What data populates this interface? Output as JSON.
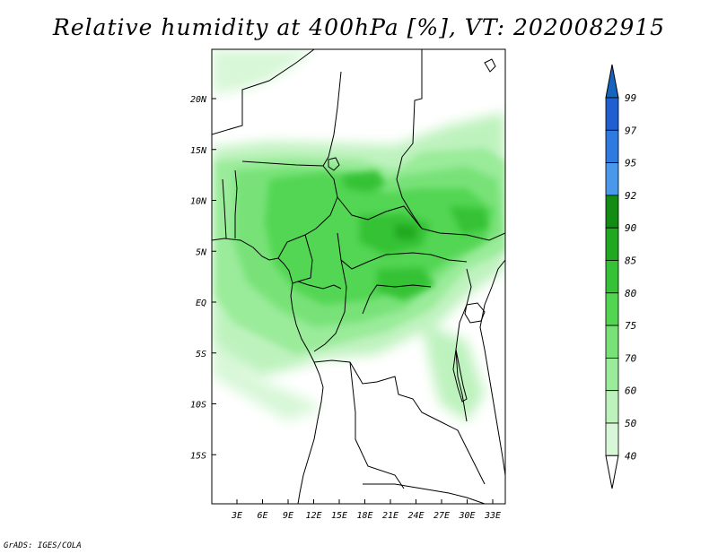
{
  "title": "Relative humidity at 400hPa [%], VT: 2020082915",
  "credit": "GrADS: IGES/COLA",
  "map": {
    "variable": "Relative humidity",
    "level": "400hPa",
    "units": "%",
    "valid_time": "2020082915",
    "lat_labels": [
      "20N",
      "15N",
      "10N",
      "5N",
      "EQ",
      "5S",
      "10S",
      "15S"
    ],
    "lon_labels": [
      "3E",
      "6E",
      "9E",
      "12E",
      "15E",
      "18E",
      "21E",
      "24E",
      "27E",
      "30E",
      "33E"
    ]
  },
  "colorbar": {
    "levels": [
      "99",
      "97",
      "95",
      "92",
      "90",
      "85",
      "80",
      "75",
      "70",
      "60",
      "50",
      "40"
    ],
    "colors": [
      "#1f5fd0",
      "#2f7ae0",
      "#4a98ec",
      "#128c12",
      "#20a820",
      "#36c236",
      "#52d652",
      "#78e278",
      "#9aeb9a",
      "#bdf2bd",
      "#d8f7d8",
      "#edfbed"
    ],
    "top_color": "#1565c0",
    "bottom_color": "#ffffff"
  }
}
